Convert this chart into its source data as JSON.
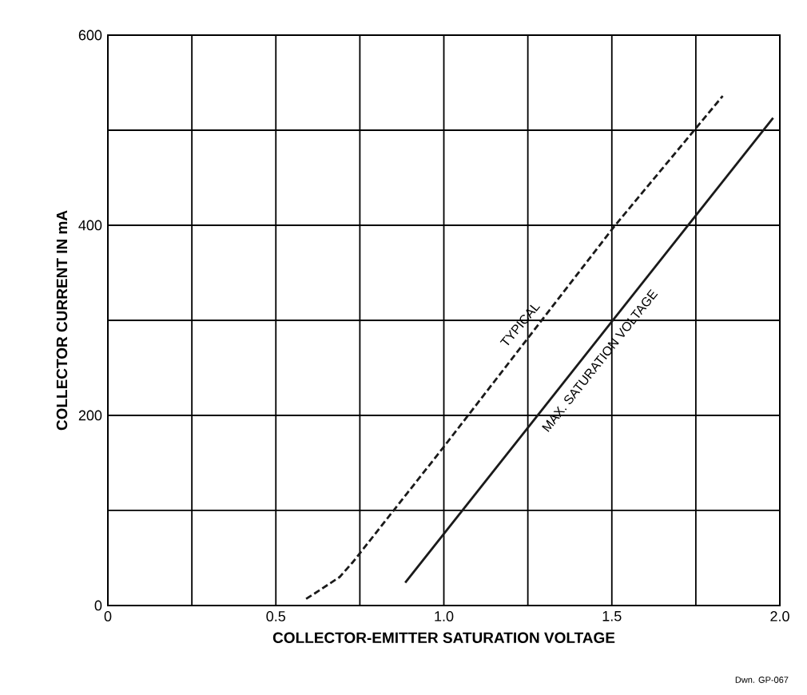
{
  "chart_data": {
    "type": "line",
    "xlabel": "COLLECTOR-EMITTER SATURATION VOLTAGE",
    "ylabel": "COLLECTOR CURRENT IN mA",
    "series": [
      {
        "color": "#1a1a1a",
        "line_style": "dashed",
        "x": [
          0.59,
          0.63,
          0.69,
          0.73,
          1.0,
          1.51,
          1.83
        ],
        "values": [
          7,
          16,
          30,
          46,
          167,
          400,
          536
        ]
      },
      {
        "color": "#1a1a1a",
        "line_style": "solid",
        "x": [
          0.885,
          1.98
        ],
        "values": [
          24,
          513
        ]
      }
    ],
    "xlim": [
      0,
      2.0
    ],
    "ylim": [
      0,
      600
    ],
    "xticks": [
      0,
      {
        "value": 0.25,
        "label": null
      },
      0.5,
      {
        "value": 0.75,
        "label": null
      },
      {
        "value": 1.0,
        "label": "1.0"
      },
      {
        "value": 1.25,
        "label": null
      },
      1.5,
      {
        "value": 1.75,
        "label": null
      },
      {
        "value": 2.0,
        "label": "2.0"
      }
    ],
    "yticks": [
      0,
      {
        "value": 100,
        "label": null
      },
      200,
      {
        "value": 300,
        "label": null
      },
      400,
      {
        "value": 500,
        "label": null
      },
      600
    ],
    "grid": true,
    "marker": "none",
    "annotations": [
      {
        "text": "TYPICAL",
        "x": 1.26,
        "y": 286
      },
      {
        "text": "MAX. SATURATION VOLTAGE",
        "x": 1.43,
        "y": 267
      },
      "Dwn. GP-067"
    ]
  }
}
